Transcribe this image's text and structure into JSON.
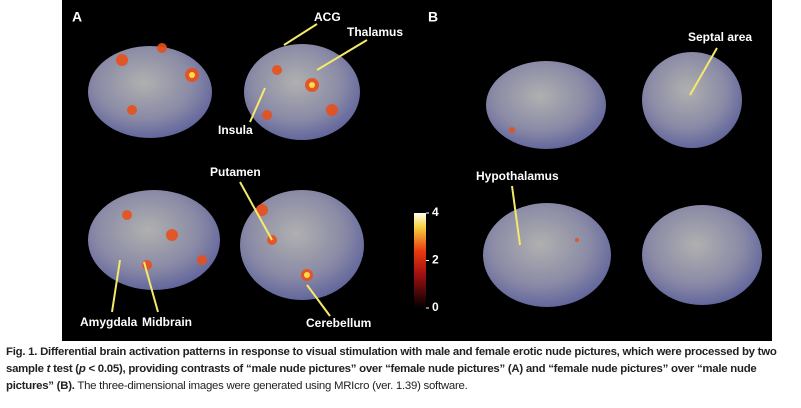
{
  "figure": {
    "panels": [
      {
        "label": "A"
      },
      {
        "label": "B"
      }
    ],
    "annotations": [
      "ACG",
      "Thalamus",
      "Insula",
      "Putamen",
      "Amygdala",
      "Midbrain",
      "Cerebellum",
      "Septal area",
      "Hypothalamus"
    ],
    "colorbar": {
      "lim": [
        0,
        4
      ],
      "ticks": [
        0,
        2,
        4
      ]
    },
    "caption": {
      "segments": [
        "Fig. 1. Differential brain activation patterns in response to visual stimulation with male and female erotic nude pictures, which were processed by two sample ",
        "t",
        " test (",
        "p",
        " < 0.05), providing contrasts of “male nude pictures” over “female nude pictures” (A) and “female nude pictures” over “male nude pictures” (B).",
        " The three-dimensional images were generated using MRIcro (ver. 1.39) software."
      ]
    }
  }
}
